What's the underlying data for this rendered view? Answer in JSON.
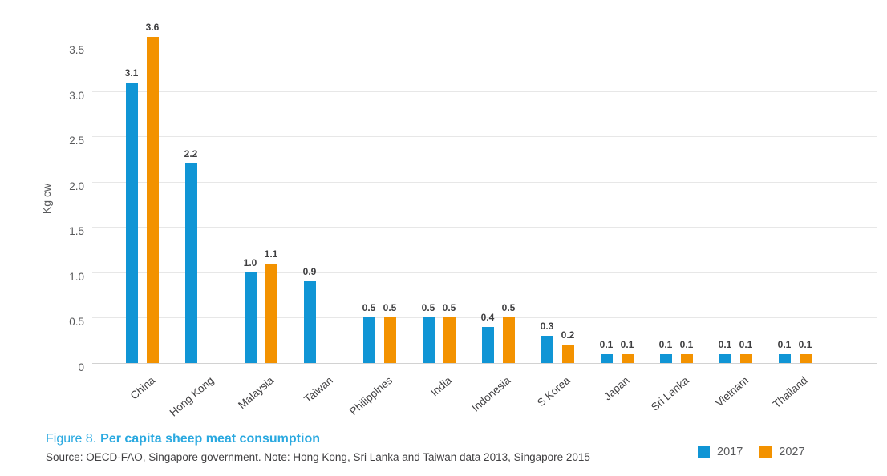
{
  "figure": {
    "caption_prefix": "Figure 8.",
    "caption_title": "Per capita sheep meat consumption",
    "source_note": "Source: OECD-FAO, Singapore government. Note: Hong Kong, Sri Lanka and Taiwan data 2013, Singapore 2015"
  },
  "colors": {
    "series_2017": "#1095d5",
    "series_2027": "#f39200",
    "caption_blue": "#2aa9e0",
    "gridline": "#e7e7e7",
    "baseline": "#d2d2d2",
    "tick_text": "#58595b",
    "label_text": "#414042"
  },
  "chart_data": {
    "type": "bar",
    "title": "Per capita sheep meat consumption",
    "xlabel": "",
    "ylabel": "Kg cw",
    "ylim": [
      0,
      3.76
    ],
    "yticks": [
      0,
      0.5,
      1,
      1.5,
      2,
      2.5,
      3,
      3.5
    ],
    "ytick_labels": [
      "0",
      "0.5",
      "1.0",
      "1.5",
      "2.0",
      "2.5",
      "3.0",
      "3.5"
    ],
    "grid": true,
    "legend_position": "bottom-right",
    "categories": [
      "China",
      "Hong Kong",
      "Malaysia",
      "Taiwan",
      "Philippines",
      "India",
      "Indonesia",
      "S Korea",
      "Japan",
      "Sri Lanka",
      "Vietnam",
      "Thailand"
    ],
    "series": [
      {
        "name": "2017",
        "color": "#1095d5",
        "values": [
          3.1,
          2.2,
          1.0,
          0.9,
          0.5,
          0.5,
          0.4,
          0.3,
          0.1,
          0.1,
          0.1,
          0.1
        ]
      },
      {
        "name": "2027",
        "color": "#f39200",
        "values": [
          3.6,
          null,
          1.1,
          null,
          0.5,
          0.5,
          0.5,
          0.2,
          0.1,
          0.1,
          0.1,
          0.1
        ]
      }
    ]
  },
  "legend": {
    "items": [
      {
        "label": "2017",
        "color": "#1095d5"
      },
      {
        "label": "2027",
        "color": "#f39200"
      }
    ]
  }
}
